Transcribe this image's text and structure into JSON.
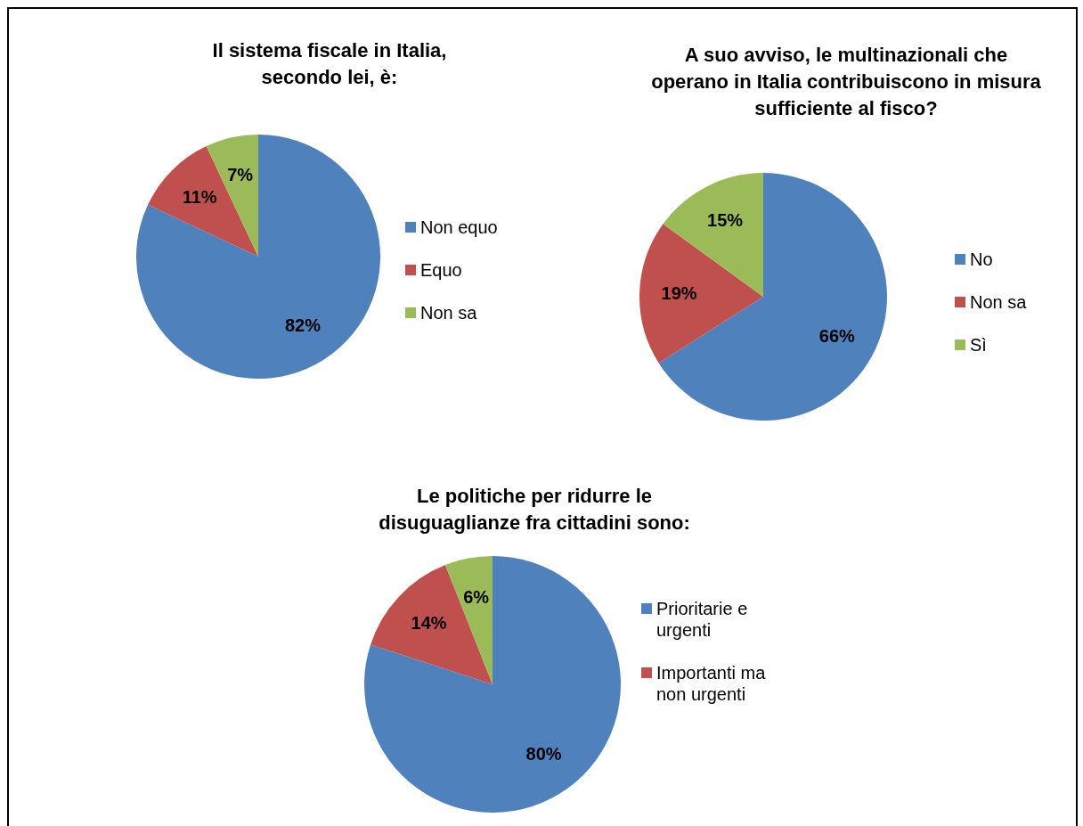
{
  "chart_data": [
    {
      "type": "pie",
      "title": "Il sistema fiscale in Italia, secondo lei, è:",
      "categories": [
        "Non equo",
        "Equo",
        "Non sa"
      ],
      "values": [
        82,
        11,
        7
      ],
      "colors": [
        "#4f81bd",
        "#c0504d",
        "#9bbb59"
      ],
      "value_labels": [
        "82%",
        "11%",
        "7%"
      ],
      "legend": "right"
    },
    {
      "type": "pie",
      "title": "A suo avviso, le multinazionali che operano in Italia contribuiscono in misura sufficiente al fisco?",
      "categories": [
        "No",
        "Non sa",
        "Sì"
      ],
      "values": [
        66,
        19,
        15
      ],
      "colors": [
        "#4f81bd",
        "#c0504d",
        "#9bbb59"
      ],
      "value_labels": [
        "66%",
        "19%",
        "15%"
      ],
      "legend": "right"
    },
    {
      "type": "pie",
      "title": "Le politiche per ridurre le disuguaglianze fra cittadini sono:",
      "categories": [
        "Prioritarie e urgenti",
        "Importanti ma non urgenti",
        null
      ],
      "values": [
        80,
        14,
        6
      ],
      "colors": [
        "#4f81bd",
        "#c0504d",
        "#9bbb59"
      ],
      "value_labels": [
        "80%",
        "14%",
        "6%"
      ],
      "legend": "right"
    }
  ]
}
